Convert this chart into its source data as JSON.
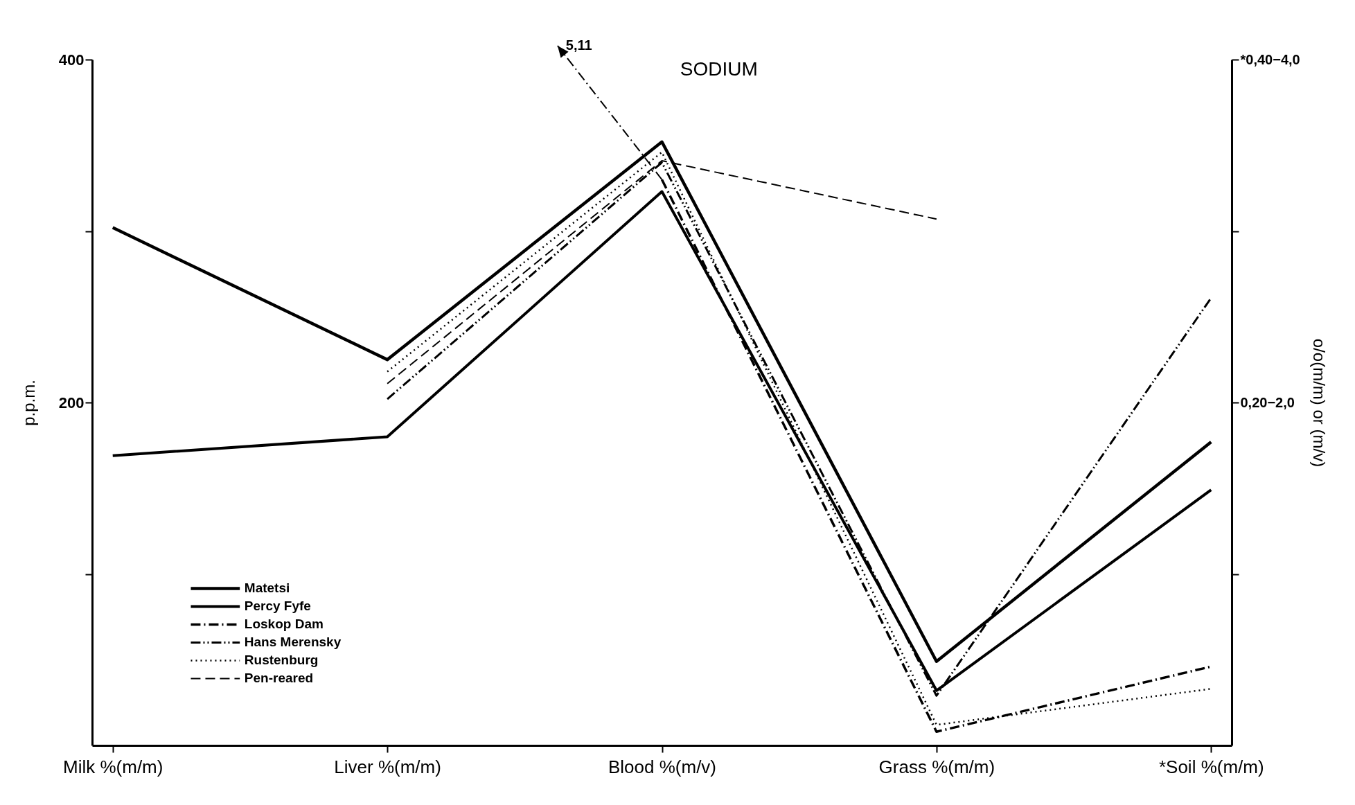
{
  "chart_data": {
    "type": "line",
    "title": "SODIUM",
    "ylabel": "p.p.m.",
    "y2label": "o/o(m/m) or (m/v)",
    "categories": [
      "Milk %(m/m)",
      "Liver %(m/m)",
      "Blood %(m/v)",
      "Grass %(m/m)",
      "*Soil %(m/m)"
    ],
    "series": [
      {
        "name": "Matetsi",
        "color": "#000000",
        "line_style": "solid",
        "values": [
          302,
          225,
          352,
          49,
          177
        ]
      },
      {
        "name": "Percy Fyfe",
        "color": "#000000",
        "line_style": "solid",
        "values": [
          169,
          180,
          323,
          32,
          149
        ]
      },
      {
        "name": "Loskop Dam",
        "color": "#000000",
        "line_style": "dashdot",
        "values": [
          null,
          null,
          330,
          8,
          46
        ]
      },
      {
        "name": "Hans Merensky",
        "color": "#000000",
        "line_style": "dashdotdot",
        "values": [
          null,
          202,
          340,
          29,
          261
        ]
      },
      {
        "name": "Rustenburg",
        "color": "#000000",
        "line_style": "dotted",
        "values": [
          null,
          218,
          346,
          12,
          33
        ]
      },
      {
        "name": "Pen-reared",
        "color": "#000000",
        "line_style": "dashed",
        "values": [
          null,
          211,
          341,
          307,
          null
        ]
      }
    ],
    "ylim": [
      0,
      400
    ],
    "yticks": [
      400,
      {
        "value": 300,
        "label": null
      },
      200,
      {
        "value": 100,
        "label": null
      }
    ],
    "annotations": [
      "5,11",
      "*0,40−4,0",
      "0,20−2,0"
    ],
    "grid": false,
    "legend": "bottom left"
  }
}
